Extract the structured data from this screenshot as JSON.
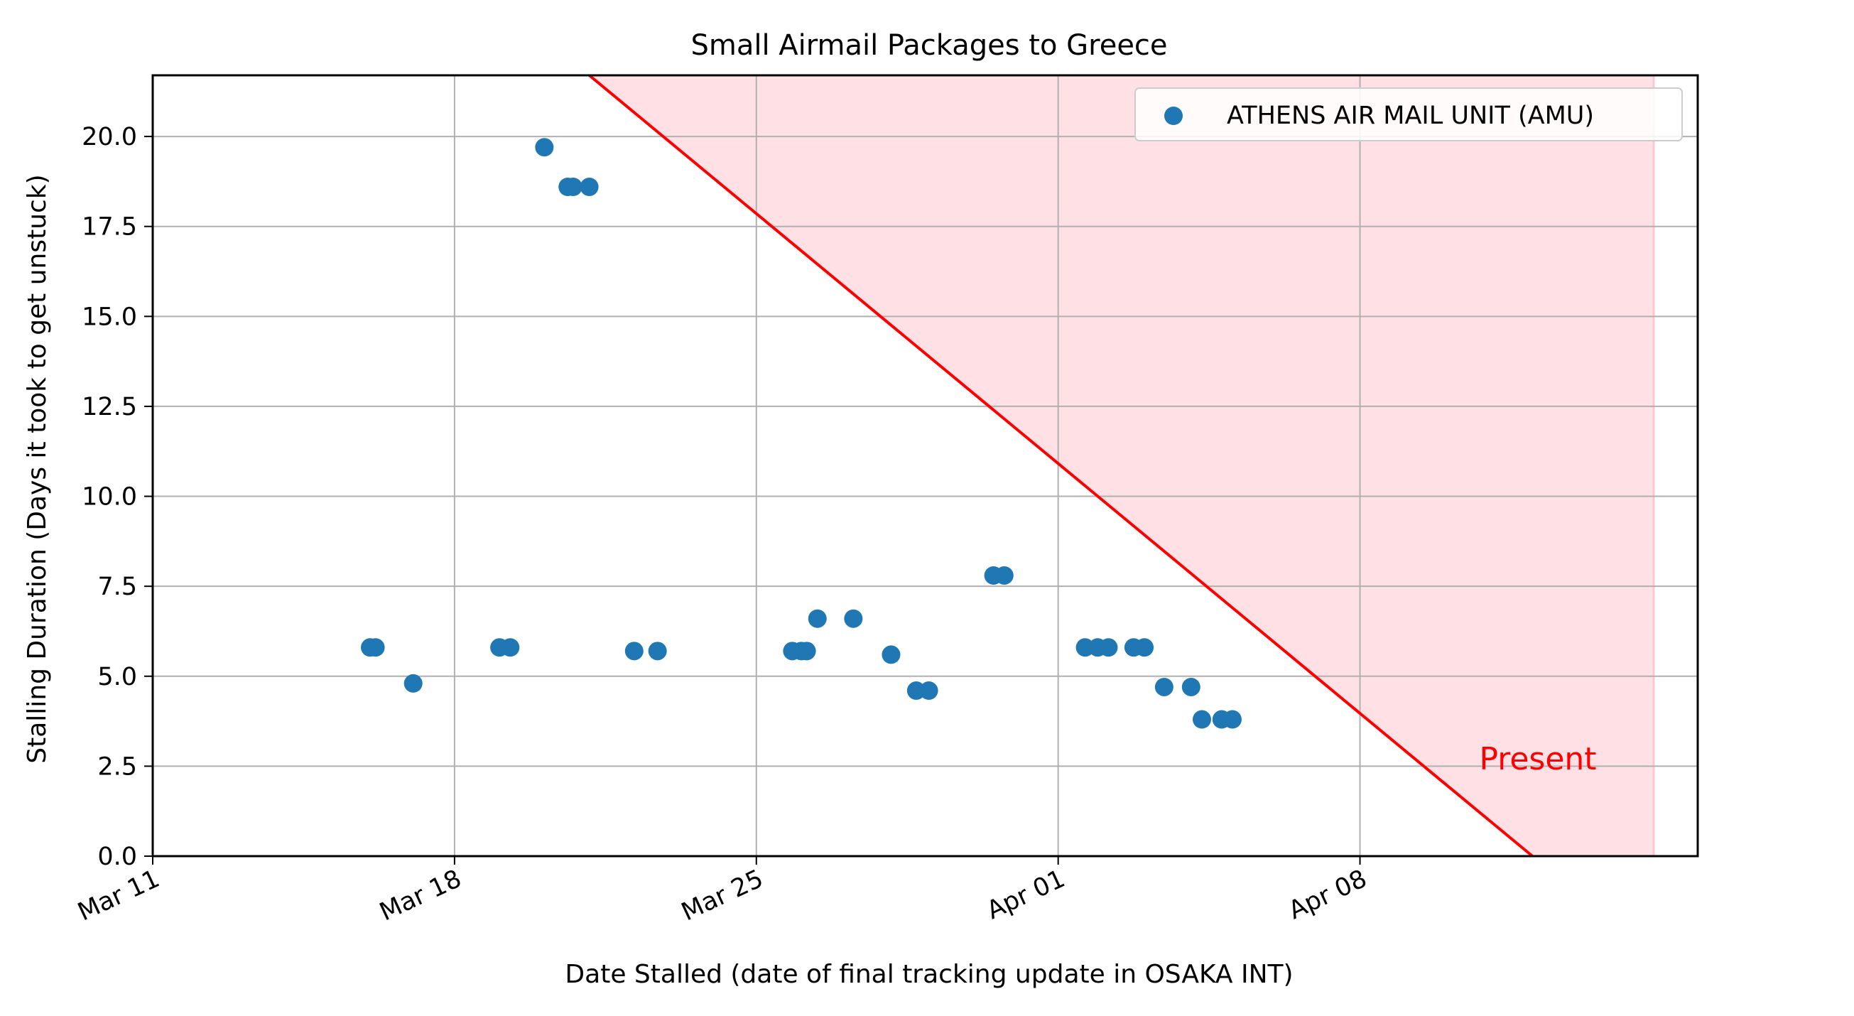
{
  "chart_data": {
    "type": "scatter",
    "title": "Small Airmail Packages to Greece",
    "xlabel": "Date Stalled (date of final tracking update in OSAKA INT)",
    "ylabel": "Stalling Duration (Days it took to get unstuck)",
    "x_axis": "date",
    "xlim": [
      "2024-03-11",
      "2024-04-15T20:00"
    ],
    "ylim": [
      0,
      21.7
    ],
    "x_ticks": [
      {
        "date": "2024-03-11",
        "label": "Mar 11"
      },
      {
        "date": "2024-03-18",
        "label": "Mar 18"
      },
      {
        "date": "2024-03-25",
        "label": "Mar 25"
      },
      {
        "date": "2024-04-01",
        "label": "Apr 01"
      },
      {
        "date": "2024-04-08",
        "label": "Apr 08"
      }
    ],
    "y_ticks": [
      {
        "value": 0,
        "label": "0.0"
      },
      {
        "value": 2.5,
        "label": "2.5"
      },
      {
        "value": 5,
        "label": "5.0"
      },
      {
        "value": 7.5,
        "label": "7.5"
      },
      {
        "value": 10,
        "label": "10.0"
      },
      {
        "value": 12.5,
        "label": "12.5"
      },
      {
        "value": 15,
        "label": "15.0"
      },
      {
        "value": 17.5,
        "label": "17.5"
      },
      {
        "value": 20,
        "label": "20.0"
      }
    ],
    "grid": true,
    "legend_position": "top-right",
    "series": [
      {
        "name": "ATHENS AIR MAIL UNIT (AMU)",
        "color": "#1f77b4",
        "points": [
          {
            "x": "2024-03-16T01:00",
            "y": 5.8
          },
          {
            "x": "2024-03-16T04:00",
            "y": 5.8
          },
          {
            "x": "2024-03-17T01:00",
            "y": 4.8
          },
          {
            "x": "2024-03-19T01:00",
            "y": 5.8
          },
          {
            "x": "2024-03-19T07:00",
            "y": 5.8
          },
          {
            "x": "2024-03-20T02:00",
            "y": 19.7
          },
          {
            "x": "2024-03-20T15:00",
            "y": 18.6
          },
          {
            "x": "2024-03-20T18:00",
            "y": 18.6
          },
          {
            "x": "2024-03-21T03:00",
            "y": 18.6
          },
          {
            "x": "2024-03-22T04:00",
            "y": 5.7
          },
          {
            "x": "2024-03-22T17:00",
            "y": 5.7
          },
          {
            "x": "2024-03-25T20:00",
            "y": 5.7
          },
          {
            "x": "2024-03-26T01:00",
            "y": 5.7
          },
          {
            "x": "2024-03-26T04:00",
            "y": 5.7
          },
          {
            "x": "2024-03-26T10:00",
            "y": 6.6
          },
          {
            "x": "2024-03-27T06:00",
            "y": 6.6
          },
          {
            "x": "2024-03-28T03:00",
            "y": 5.6
          },
          {
            "x": "2024-03-28T17:00",
            "y": 4.6
          },
          {
            "x": "2024-03-29T00:00",
            "y": 4.6
          },
          {
            "x": "2024-03-30T12:00",
            "y": 7.8
          },
          {
            "x": "2024-03-30T18:00",
            "y": 7.8
          },
          {
            "x": "2024-04-01T15:00",
            "y": 5.8
          },
          {
            "x": "2024-04-01T22:00",
            "y": 5.8
          },
          {
            "x": "2024-04-02T04:00",
            "y": 5.8
          },
          {
            "x": "2024-04-02T18:00",
            "y": 5.8
          },
          {
            "x": "2024-04-03T00:00",
            "y": 5.8
          },
          {
            "x": "2024-04-03T11:00",
            "y": 4.7
          },
          {
            "x": "2024-04-04T02:00",
            "y": 4.7
          },
          {
            "x": "2024-04-04T08:00",
            "y": 3.8
          },
          {
            "x": "2024-04-04T19:00",
            "y": 3.8
          },
          {
            "x": "2024-04-05T01:00",
            "y": 3.8
          }
        ]
      }
    ],
    "present_line": {
      "label": "Present",
      "color": "#ff0000",
      "from": {
        "x": "2024-03-21T03:00",
        "y": 21.7
      },
      "to": {
        "x": "2024-04-12T00:00",
        "y": 0
      }
    },
    "shaded_region_color": "#ffe0e4"
  }
}
